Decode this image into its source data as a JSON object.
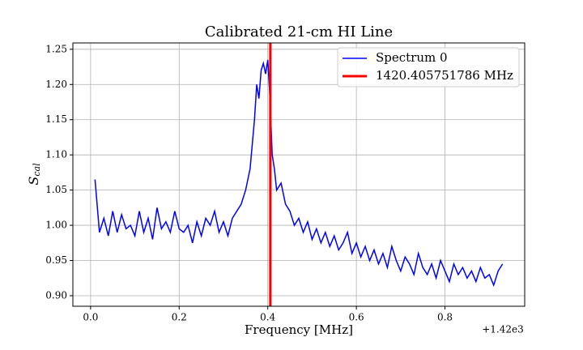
{
  "chart_data": {
    "type": "line",
    "title": "Calibrated 21-cm HI Line",
    "xlabel": "Frequency [MHz]",
    "ylabel": "S",
    "ylabel_subscript": "cal",
    "x_offset_label": "+1.42e3",
    "xlim": [
      1419.96,
      1420.98
    ],
    "ylim": [
      0.885,
      1.259
    ],
    "xticks": [
      {
        "value": 1420.0,
        "label": "0.0"
      },
      {
        "value": 1420.2,
        "label": "0.2"
      },
      {
        "value": 1420.4,
        "label": "0.4"
      },
      {
        "value": 1420.6,
        "label": "0.6"
      },
      {
        "value": 1420.8,
        "label": "0.8"
      }
    ],
    "yticks": [
      {
        "value": 0.9,
        "label": "0.90"
      },
      {
        "value": 0.95,
        "label": "0.95"
      },
      {
        "value": 1.0,
        "label": "1.00"
      },
      {
        "value": 1.05,
        "label": "1.05"
      },
      {
        "value": 1.1,
        "label": "1.10"
      },
      {
        "value": 1.15,
        "label": "1.15"
      },
      {
        "value": 1.2,
        "label": "1.20"
      },
      {
        "value": 1.25,
        "label": "1.25"
      }
    ],
    "grid": true,
    "legend": "upper right",
    "series": [
      {
        "name": "Spectrum 0",
        "color": "#0000ff",
        "x": [
          1420.01,
          1420.02,
          1420.03,
          1420.04,
          1420.05,
          1420.06,
          1420.07,
          1420.08,
          1420.09,
          1420.1,
          1420.11,
          1420.12,
          1420.13,
          1420.14,
          1420.15,
          1420.16,
          1420.17,
          1420.18,
          1420.19,
          1420.2,
          1420.21,
          1420.22,
          1420.23,
          1420.24,
          1420.25,
          1420.26,
          1420.27,
          1420.28,
          1420.29,
          1420.3,
          1420.31,
          1420.32,
          1420.33,
          1420.34,
          1420.35,
          1420.36,
          1420.37,
          1420.375,
          1420.38,
          1420.385,
          1420.39,
          1420.395,
          1420.4,
          1420.405,
          1420.41,
          1420.415,
          1420.42,
          1420.43,
          1420.44,
          1420.45,
          1420.46,
          1420.47,
          1420.48,
          1420.49,
          1420.5,
          1420.51,
          1420.52,
          1420.53,
          1420.54,
          1420.55,
          1420.56,
          1420.57,
          1420.58,
          1420.59,
          1420.6,
          1420.61,
          1420.62,
          1420.63,
          1420.64,
          1420.65,
          1420.66,
          1420.67,
          1420.68,
          1420.69,
          1420.7,
          1420.71,
          1420.72,
          1420.73,
          1420.74,
          1420.75,
          1420.76,
          1420.77,
          1420.78,
          1420.79,
          1420.8,
          1420.81,
          1420.82,
          1420.83,
          1420.84,
          1420.85,
          1420.86,
          1420.87,
          1420.88,
          1420.89,
          1420.9,
          1420.91,
          1420.92,
          1420.93
        ],
        "values": [
          1.065,
          0.99,
          1.01,
          0.985,
          1.02,
          0.99,
          1.015,
          0.995,
          1.0,
          0.985,
          1.02,
          0.99,
          1.01,
          0.98,
          1.025,
          0.995,
          1.005,
          0.99,
          1.02,
          0.995,
          0.99,
          1.0,
          0.975,
          1.005,
          0.985,
          1.01,
          1.0,
          1.02,
          0.99,
          1.005,
          0.985,
          1.01,
          1.02,
          1.03,
          1.05,
          1.08,
          1.15,
          1.2,
          1.18,
          1.22,
          1.23,
          1.215,
          1.235,
          1.18,
          1.1,
          1.08,
          1.05,
          1.06,
          1.03,
          1.02,
          1.0,
          1.01,
          0.99,
          1.005,
          0.98,
          0.995,
          0.975,
          0.99,
          0.97,
          0.985,
          0.965,
          0.975,
          0.99,
          0.96,
          0.975,
          0.955,
          0.97,
          0.95,
          0.965,
          0.945,
          0.96,
          0.94,
          0.97,
          0.95,
          0.935,
          0.955,
          0.945,
          0.93,
          0.96,
          0.94,
          0.93,
          0.945,
          0.925,
          0.95,
          0.935,
          0.92,
          0.945,
          0.93,
          0.94,
          0.925,
          0.935,
          0.92,
          0.94,
          0.925,
          0.93,
          0.915,
          0.935,
          0.945
        ]
      }
    ],
    "vline": {
      "name": "1420.405751786 MHz",
      "x": 1420.405751786,
      "color": "#ff0000"
    }
  }
}
